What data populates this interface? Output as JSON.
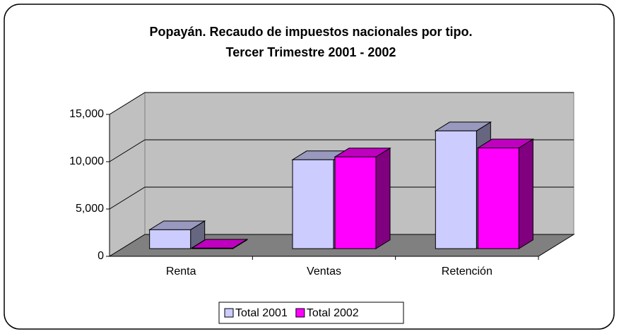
{
  "chart_data": {
    "type": "bar3d",
    "title": "Popayán.  Recaudo de impuestos nacionales por tipo.",
    "subtitle": "Tercer Trimestre 2001 - 2002",
    "categories": [
      "Renta",
      "Ventas",
      "Retención"
    ],
    "series": [
      {
        "name": "Total 2001",
        "color": "#ccccff",
        "values": [
          2000,
          9400,
          12450
        ]
      },
      {
        "name": "Total 2002",
        "color": "#ff00ff",
        "values": [
          60,
          9700,
          10650
        ]
      }
    ],
    "ylim": [
      0,
      15000
    ],
    "yticks": [
      {
        "value": 0,
        "label": "0"
      },
      {
        "value": 5000,
        "label": "5,000"
      },
      {
        "value": 10000,
        "label": "10,000"
      },
      {
        "value": 15000,
        "label": "15,000"
      }
    ],
    "grid": true,
    "legend": "bottom"
  }
}
